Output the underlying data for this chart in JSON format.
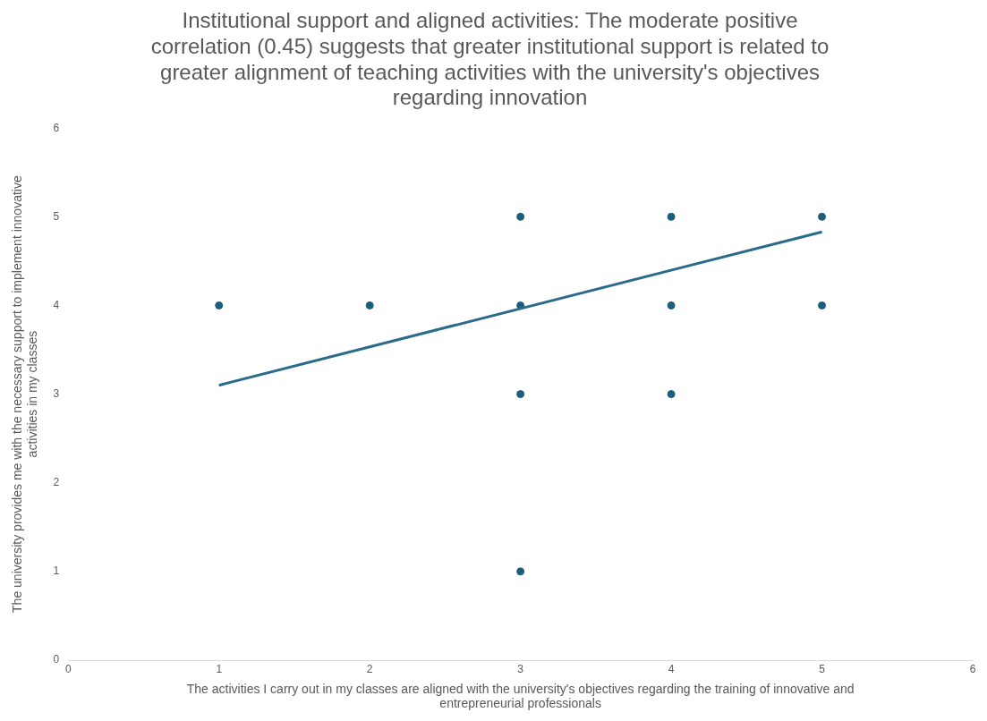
{
  "chart_data": {
    "type": "scatter",
    "title": "Institutional support and aligned activities: The moderate positive correlation (0.45) suggests that greater institutional support is related to greater alignment of teaching activities with the university's objectives regarding innovation",
    "xlabel": "The activities I carry out in my classes are aligned with the university's objectives regarding the training of innovative and entrepreneurial professionals",
    "ylabel": "The university provides me with the necessary support to implement innovative activities in my classes",
    "xlim": [
      0,
      6
    ],
    "xticks": [
      0,
      1,
      2,
      3,
      4,
      5,
      6
    ],
    "ylim": [
      0,
      6
    ],
    "yticks": [
      0,
      1,
      2,
      3,
      4,
      5,
      6
    ],
    "grid": false,
    "legend": false,
    "marker": "circle",
    "series": [
      {
        "type": "scatter",
        "color": "#1b5e7e",
        "x": [
          1,
          2,
          3,
          3,
          3,
          3,
          4,
          4,
          4,
          5,
          5
        ],
        "values": [
          4,
          4,
          5,
          4,
          3,
          1,
          5,
          4,
          3,
          5,
          4
        ]
      },
      {
        "type": "line",
        "color": "#2a6a8a",
        "line_style": "solid",
        "marker": "none",
        "x": [
          1,
          5
        ],
        "values": [
          3.1,
          4.83
        ]
      }
    ]
  }
}
